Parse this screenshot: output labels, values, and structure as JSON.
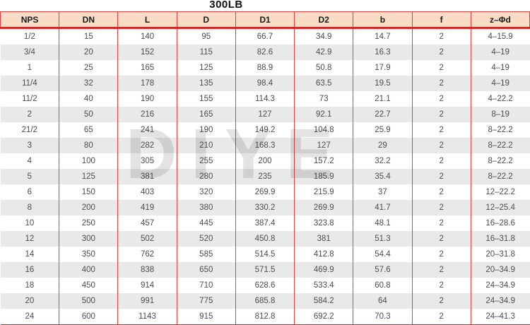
{
  "title": "300LB",
  "watermark": "DIYE",
  "colors": {
    "header_bg": "#f8dcc6",
    "grid_red": "#e0403d",
    "thick_red": "#d22c28",
    "row_alt_bg": "#e9e9e9",
    "header_text": "#1a1a1a",
    "cell_text": "#4d4d4d",
    "watermark_gray": "#dcdcdc"
  },
  "table": {
    "columns": [
      "NPS",
      "DN",
      "L",
      "D",
      "D1",
      "D2",
      "b",
      "f",
      "z–Φd"
    ],
    "rows": [
      [
        "1/2",
        "15",
        "140",
        "95",
        "66.7",
        "34.9",
        "14.7",
        "2",
        "4–15.9"
      ],
      [
        "3/4",
        "20",
        "152",
        "115",
        "82.6",
        "42.9",
        "16.3",
        "2",
        "4–19"
      ],
      [
        "1",
        "25",
        "165",
        "125",
        "88.9",
        "50.8",
        "17.9",
        "2",
        "4–19"
      ],
      [
        "11/4",
        "32",
        "178",
        "135",
        "98.4",
        "63.5",
        "19.5",
        "2",
        "4–19"
      ],
      [
        "11/2",
        "40",
        "190",
        "155",
        "114.3",
        "73",
        "21.1",
        "2",
        "4–22.2"
      ],
      [
        "2",
        "50",
        "216",
        "165",
        "127",
        "92.1",
        "22.7",
        "2",
        "8–19"
      ],
      [
        "21/2",
        "65",
        "241",
        "190",
        "149.2",
        "104.8",
        "25.9",
        "2",
        "8–22.2"
      ],
      [
        "3",
        "80",
        "282",
        "210",
        "168.3",
        "127",
        "29",
        "2",
        "8–22.2"
      ],
      [
        "4",
        "100",
        "305",
        "255",
        "200",
        "157.2",
        "32.2",
        "2",
        "8–22.2"
      ],
      [
        "5",
        "125",
        "381",
        "280",
        "235",
        "185.9",
        "35.4",
        "2",
        "8–22.2"
      ],
      [
        "6",
        "150",
        "403",
        "320",
        "269.9",
        "215.9",
        "37",
        "2",
        "12–22.2"
      ],
      [
        "8",
        "200",
        "419",
        "380",
        "330.2",
        "269.9",
        "41.7",
        "2",
        "12–25.4"
      ],
      [
        "10",
        "250",
        "457",
        "445",
        "387.4",
        "323.8",
        "48.1",
        "2",
        "16–28.6"
      ],
      [
        "12",
        "300",
        "502",
        "520",
        "450.8",
        "381",
        "51.3",
        "2",
        "16–31.8"
      ],
      [
        "14",
        "350",
        "762",
        "585",
        "514.5",
        "412.8",
        "54.4",
        "2",
        "20–31.8"
      ],
      [
        "16",
        "400",
        "838",
        "650",
        "571.5",
        "469.9",
        "57.6",
        "2",
        "20–34.9"
      ],
      [
        "18",
        "450",
        "914",
        "710",
        "628.6",
        "533.4",
        "60.8",
        "2",
        "24–34.9"
      ],
      [
        "20",
        "500",
        "991",
        "775",
        "685.8",
        "584.2",
        "64",
        "2",
        "24–34.9"
      ],
      [
        "24",
        "600",
        "1143",
        "915",
        "812.8",
        "692.2",
        "70.3",
        "2",
        "24–41.3"
      ]
    ]
  },
  "chart_data": {
    "type": "table",
    "title": "300LB",
    "categories": [
      "NPS",
      "DN",
      "L",
      "D",
      "D1",
      "D2",
      "b",
      "f",
      "z–Φd"
    ],
    "values_note": "see table.rows"
  }
}
